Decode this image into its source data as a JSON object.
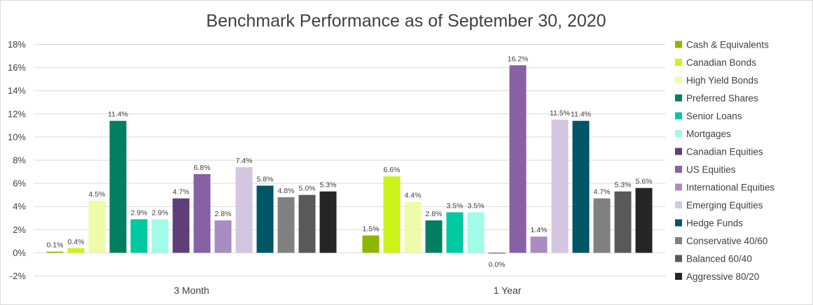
{
  "chart_data": {
    "type": "bar",
    "title": "Benchmark Performance as of September 30, 2020",
    "xlabel": "",
    "ylabel": "",
    "categories": [
      "3 Month",
      "1 Year"
    ],
    "ylim": [
      -2,
      18
    ],
    "yticks": [
      -2,
      0,
      2,
      4,
      6,
      8,
      10,
      12,
      14,
      16,
      18
    ],
    "ytick_labels": [
      "-2%",
      "0%",
      "2%",
      "4%",
      "6%",
      "8%",
      "10%",
      "12%",
      "14%",
      "16%",
      "18%"
    ],
    "grid": true,
    "legend_position": "right",
    "series": [
      {
        "name": "Cash & Equivalents",
        "color": "#8db600",
        "values": [
          0.1,
          1.5
        ],
        "labels": [
          "0.1%",
          "1.5%"
        ]
      },
      {
        "name": "Canadian Bonds",
        "color": "#ccf21a",
        "values": [
          0.4,
          6.6
        ],
        "labels": [
          "0.4%",
          "6.6%"
        ]
      },
      {
        "name": "High Yield Bonds",
        "color": "#eefcaa",
        "values": [
          4.5,
          4.4
        ],
        "labels": [
          "4.5%",
          "4.4%"
        ]
      },
      {
        "name": "Preferred Shares",
        "color": "#008060",
        "values": [
          11.4,
          2.8
        ],
        "labels": [
          "11.4%",
          "2.8%"
        ]
      },
      {
        "name": "Senior Loans",
        "color": "#00c8a0",
        "values": [
          2.9,
          3.5
        ],
        "labels": [
          "2.9%",
          "3.5%"
        ]
      },
      {
        "name": "Mortgages",
        "color": "#a0fbe8",
        "values": [
          2.9,
          3.5
        ],
        "labels": [
          "2.9%",
          "3.5%"
        ]
      },
      {
        "name": "Canadian Equities",
        "color": "#5f3f78",
        "values": [
          4.7,
          -0.05
        ],
        "labels": [
          "4.7%",
          "0.0%"
        ]
      },
      {
        "name": "US Equities",
        "color": "#8761a3",
        "values": [
          6.8,
          16.2
        ],
        "labels": [
          "6.8%",
          "16.2%"
        ]
      },
      {
        "name": "International Equities",
        "color": "#a88cc2",
        "values": [
          2.8,
          1.4
        ],
        "labels": [
          "2.8%",
          "1.4%"
        ]
      },
      {
        "name": "Emerging Equities",
        "color": "#d4c6e0",
        "values": [
          7.4,
          11.5
        ],
        "labels": [
          "7.4%",
          "11.5%"
        ]
      },
      {
        "name": "Hedge Funds",
        "color": "#005566",
        "values": [
          5.8,
          11.4
        ],
        "labels": [
          "5.8%",
          "11.4%"
        ]
      },
      {
        "name": "Conservative 40/60",
        "color": "#808080",
        "values": [
          4.8,
          4.7
        ],
        "labels": [
          "4.8%",
          "4.7%"
        ]
      },
      {
        "name": "Balanced 60/40",
        "color": "#595959",
        "values": [
          5.0,
          5.3
        ],
        "labels": [
          "5.0%",
          "5.3%"
        ]
      },
      {
        "name": "Aggressive 80/20",
        "color": "#262626",
        "values": [
          5.3,
          5.6
        ],
        "labels": [
          "5.3%",
          "5.6%"
        ]
      }
    ]
  }
}
